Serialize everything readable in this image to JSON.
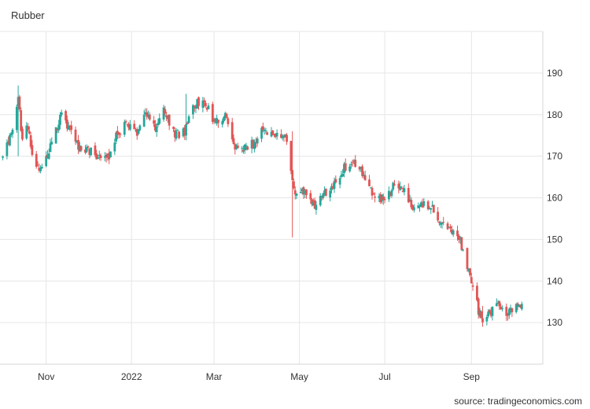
{
  "chart_data": {
    "type": "candlestick",
    "title": "Rubber",
    "source": "source: tradingeconomics.com",
    "x_tick_labels": [
      "Nov",
      "2022",
      "Mar",
      "May",
      "Jul",
      "Sep"
    ],
    "y_ticks": [
      130,
      140,
      150,
      160,
      170,
      180,
      190
    ],
    "ylim": [
      120,
      200
    ],
    "grid": true,
    "colors": {
      "up": "#26a69a",
      "down": "#e25555",
      "grid": "#e6e6e6"
    },
    "anchors": [
      [
        "2021-10-01",
        170
      ],
      [
        "2021-10-05",
        174
      ],
      [
        "2021-10-08",
        176
      ],
      [
        "2021-10-12",
        184
      ],
      [
        "2021-10-15",
        174
      ],
      [
        "2021-10-19",
        177
      ],
      [
        "2021-10-22",
        170
      ],
      [
        "2021-10-26",
        167
      ],
      [
        "2021-11-02",
        170
      ],
      [
        "2021-11-05",
        173
      ],
      [
        "2021-11-09",
        177
      ],
      [
        "2021-11-12",
        180
      ],
      [
        "2021-11-18",
        176
      ],
      [
        "2021-11-25",
        172
      ],
      [
        "2021-12-03",
        171
      ],
      [
        "2021-12-10",
        169
      ],
      [
        "2021-12-16",
        170
      ],
      [
        "2021-12-21",
        175
      ],
      [
        "2021-12-28",
        178
      ],
      [
        "2022-01-05",
        176
      ],
      [
        "2022-01-12",
        180
      ],
      [
        "2022-01-18",
        177
      ],
      [
        "2022-01-24",
        182
      ],
      [
        "2022-02-01",
        175
      ],
      [
        "2022-02-08",
        176
      ],
      [
        "2022-02-15",
        182
      ],
      [
        "2022-02-22",
        184
      ],
      [
        "2022-02-28",
        178
      ],
      [
        "2022-03-07",
        179
      ],
      [
        "2022-03-10",
        180
      ],
      [
        "2022-03-15",
        172
      ],
      [
        "2022-03-22",
        172
      ],
      [
        "2022-03-29",
        173
      ],
      [
        "2022-04-05",
        177
      ],
      [
        "2022-04-12",
        175
      ],
      [
        "2022-04-19",
        175
      ],
      [
        "2022-04-22",
        174
      ],
      [
        "2022-04-26",
        165
      ],
      [
        "2022-04-28",
        160
      ],
      [
        "2022-05-05",
        162
      ],
      [
        "2022-05-11",
        158
      ],
      [
        "2022-05-19",
        161
      ],
      [
        "2022-05-26",
        163
      ],
      [
        "2022-06-02",
        167
      ],
      [
        "2022-06-09",
        168
      ],
      [
        "2022-06-14",
        167
      ],
      [
        "2022-06-20",
        162
      ],
      [
        "2022-06-28",
        160
      ],
      [
        "2022-07-05",
        161
      ],
      [
        "2022-07-08",
        164
      ],
      [
        "2022-07-15",
        162
      ],
      [
        "2022-07-22",
        157
      ],
      [
        "2022-07-29",
        158
      ],
      [
        "2022-08-05",
        157
      ],
      [
        "2022-08-12",
        153
      ],
      [
        "2022-08-19",
        151
      ],
      [
        "2022-08-26",
        148
      ],
      [
        "2022-09-01",
        140
      ],
      [
        "2022-09-06",
        133
      ],
      [
        "2022-09-09",
        131
      ],
      [
        "2022-09-14",
        132
      ],
      [
        "2022-09-20",
        134
      ],
      [
        "2022-09-27",
        132
      ],
      [
        "2022-10-03",
        134
      ],
      [
        "2022-10-07",
        135
      ]
    ],
    "spikes": [
      {
        "date": "2021-10-12",
        "high": 187,
        "low": 170
      },
      {
        "date": "2022-02-09",
        "high": 185,
        "low": 174
      },
      {
        "date": "2022-04-26",
        "high": 176,
        "low": 150.5
      },
      {
        "date": "2022-09-09",
        "high": 134,
        "low": 129
      }
    ]
  }
}
